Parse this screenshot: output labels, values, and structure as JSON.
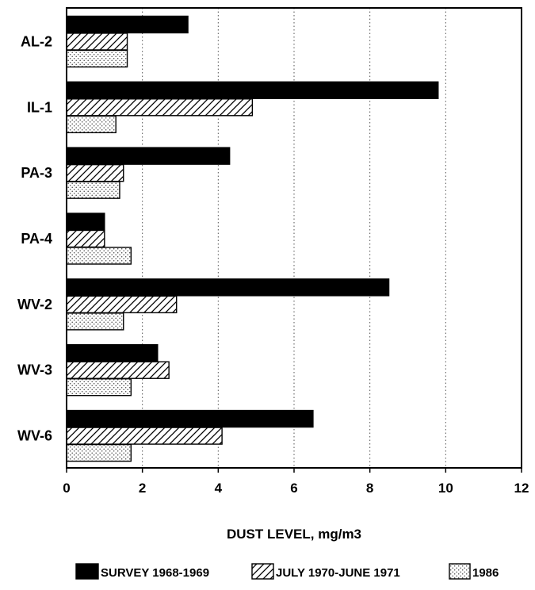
{
  "chart_data": {
    "type": "bar",
    "orientation": "horizontal",
    "categories": [
      "AL-2",
      "IL-1",
      "PA-3",
      "PA-4",
      "WV-2",
      "WV-3",
      "WV-6"
    ],
    "series": [
      {
        "name": "SURVEY 1968-1969",
        "values": [
          3.2,
          9.8,
          4.3,
          1.0,
          8.5,
          2.4,
          6.5
        ],
        "pattern": "solid",
        "color": "#000000"
      },
      {
        "name": "JULY 1970-JUNE 1971",
        "values": [
          1.6,
          4.9,
          1.5,
          1.0,
          2.9,
          2.7,
          4.1
        ],
        "pattern": "hatch",
        "color": "#000000"
      },
      {
        "name": "1986",
        "values": [
          1.6,
          1.3,
          1.4,
          1.7,
          1.5,
          1.7,
          1.7
        ],
        "pattern": "dots",
        "color": "#000000"
      }
    ],
    "xlabel": "DUST LEVEL, mg/m3",
    "xlim": [
      0,
      12
    ],
    "xticks": [
      "0",
      "2",
      "4",
      "6",
      "8",
      "10",
      "12"
    ],
    "grid": "vertical-dotted",
    "legend_position": "bottom"
  }
}
